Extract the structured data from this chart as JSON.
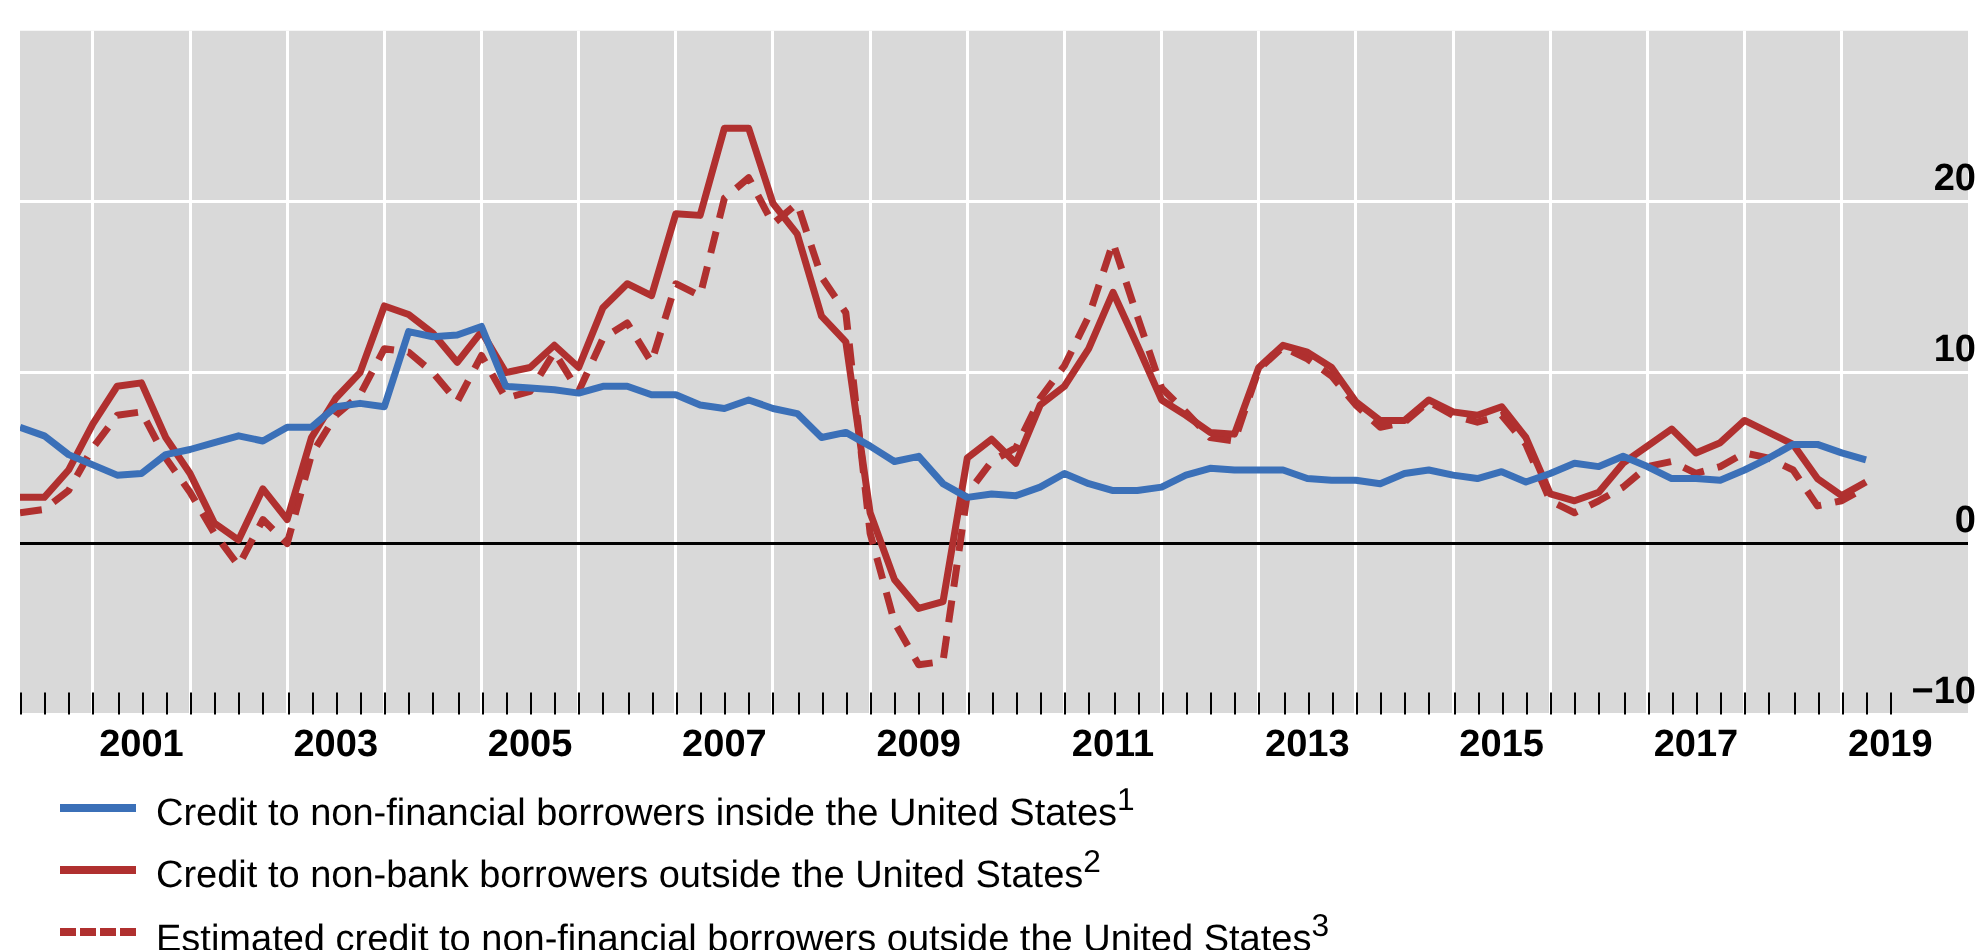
{
  "chart_data": {
    "type": "line",
    "x": [
      2000.25,
      2000.5,
      2000.75,
      2001,
      2001.25,
      2001.5,
      2001.75,
      2002,
      2002.25,
      2002.5,
      2002.75,
      2003,
      2003.25,
      2003.5,
      2003.75,
      2004,
      2004.25,
      2004.5,
      2004.75,
      2005,
      2005.25,
      2005.5,
      2005.75,
      2006,
      2006.25,
      2006.5,
      2006.75,
      2007,
      2007.25,
      2007.5,
      2007.75,
      2008,
      2008.25,
      2008.5,
      2008.75,
      2009,
      2009.25,
      2009.5,
      2009.75,
      2010,
      2010.25,
      2010.5,
      2010.75,
      2011,
      2011.25,
      2011.5,
      2011.75,
      2012,
      2012.25,
      2012.5,
      2012.75,
      2013,
      2013.25,
      2013.5,
      2013.75,
      2014,
      2014.25,
      2014.5,
      2014.75,
      2015,
      2015.25,
      2015.5,
      2015.75,
      2016,
      2016.25,
      2016.5,
      2016.75,
      2017,
      2017.25,
      2017.5,
      2017.75,
      2018,
      2018.25,
      2018.5,
      2018.75,
      2019,
      2019.25
    ],
    "series": [
      {
        "name": "Credit to non-financial borrowers inside the United States$^{1}$",
        "color": "#3b70b8",
        "line_style": "solid",
        "values": [
          6.8,
          6.3,
          5.2,
          4.6,
          4.0,
          4.1,
          5.2,
          5.5,
          5.9,
          6.3,
          6.0,
          6.8,
          6.8,
          8.0,
          8.2,
          8.0,
          12.4,
          12.1,
          12.2,
          12.7,
          9.2,
          9.1,
          9.0,
          8.8,
          9.2,
          9.2,
          8.7,
          8.7,
          8.1,
          7.9,
          8.4,
          7.9,
          7.6,
          6.2,
          6.5,
          5.7,
          4.8,
          5.1,
          3.5,
          2.7,
          2.9,
          2.8,
          3.3,
          4.1,
          3.5,
          3.1,
          3.1,
          3.3,
          4.0,
          4.4,
          4.3,
          4.3,
          4.3,
          3.8,
          3.7,
          3.7,
          3.5,
          4.1,
          4.3,
          4.0,
          3.8,
          4.2,
          3.6,
          4.1,
          4.7,
          4.5,
          5.1,
          4.5,
          3.8,
          3.8,
          3.7,
          4.3,
          5.0,
          5.8,
          5.8,
          5.3,
          4.9
        ]
      },
      {
        "name": "Credit to non-bank borrowers outside the United States$^{2}$",
        "color": "#b0302f",
        "line_style": "solid",
        "values": [
          2.7,
          2.7,
          4.3,
          7.0,
          9.2,
          9.4,
          6.2,
          4.1,
          1.2,
          0.2,
          3.2,
          1.4,
          6.2,
          8.5,
          10.0,
          13.9,
          13.4,
          12.3,
          10.6,
          12.4,
          10.0,
          10.3,
          11.6,
          10.3,
          13.8,
          15.2,
          14.5,
          19.3,
          19.2,
          24.3,
          24.3,
          19.9,
          18.1,
          13.3,
          11.8,
          1.8,
          -2.1,
          -3.8,
          -3.4,
          5.0,
          6.1,
          4.7,
          8.1,
          9.2,
          11.4,
          14.7,
          11.6,
          8.4,
          7.5,
          6.5,
          6.4,
          10.3,
          11.6,
          11.2,
          10.3,
          8.3,
          7.2,
          7.2,
          8.4,
          7.7,
          7.5,
          8.0,
          6.2,
          2.9,
          2.5,
          3.0,
          4.7,
          5.7,
          6.7,
          5.3,
          5.9,
          7.2,
          6.5,
          5.8,
          3.8,
          2.8,
          3.6
        ]
      },
      {
        "name": "Estimated credit to non-financial borrowers outside the United States$^{3}$",
        "color": "#b0302f",
        "line_style": "dashed",
        "values": [
          1.8,
          2.0,
          3.1,
          5.6,
          7.5,
          7.7,
          5.0,
          3.0,
          0.6,
          -1.3,
          1.4,
          0.0,
          5.2,
          7.5,
          8.7,
          11.4,
          11.2,
          10.0,
          8.3,
          11.0,
          8.5,
          8.9,
          11.2,
          8.9,
          12.0,
          12.9,
          10.6,
          15.2,
          14.5,
          20.2,
          21.4,
          18.7,
          19.9,
          15.6,
          13.5,
          0.6,
          -4.6,
          -7.1,
          -6.9,
          2.9,
          4.8,
          5.6,
          8.5,
          10.4,
          13.3,
          17.6,
          13.3,
          9.1,
          7.7,
          6.2,
          6.0,
          10.2,
          11.5,
          10.8,
          9.8,
          8.1,
          6.8,
          7.1,
          8.3,
          7.5,
          7.1,
          7.5,
          5.8,
          2.5,
          1.8,
          2.5,
          3.3,
          4.5,
          4.8,
          4.1,
          4.5,
          5.3,
          5.0,
          4.3,
          2.2,
          2.5,
          3.3
        ]
      }
    ],
    "xlim": [
      2000.25,
      2020.3
    ],
    "xticks": [
      {
        "value": 2000.25,
        "label": null
      },
      {
        "value": 2000.5,
        "label": null
      },
      {
        "value": 2000.75,
        "label": null
      },
      {
        "value": 2001,
        "label": null
      },
      {
        "value": 2001.25,
        "label": null
      },
      {
        "value": 2001.5,
        "label": "2001"
      },
      {
        "value": 2001.75,
        "label": null
      },
      {
        "value": 2002,
        "label": null
      },
      {
        "value": 2002.25,
        "label": null
      },
      {
        "value": 2002.5,
        "label": null
      },
      {
        "value": 2002.75,
        "label": null
      },
      {
        "value": 2003,
        "label": null
      },
      {
        "value": 2003.25,
        "label": null
      },
      {
        "value": 2003.5,
        "label": "2003"
      },
      {
        "value": 2003.75,
        "label": null
      },
      {
        "value": 2004,
        "label": null
      },
      {
        "value": 2004.25,
        "label": null
      },
      {
        "value": 2004.5,
        "label": null
      },
      {
        "value": 2004.75,
        "label": null
      },
      {
        "value": 2005,
        "label": null
      },
      {
        "value": 2005.25,
        "label": null
      },
      {
        "value": 2005.5,
        "label": "2005"
      },
      {
        "value": 2005.75,
        "label": null
      },
      {
        "value": 2006,
        "label": null
      },
      {
        "value": 2006.25,
        "label": null
      },
      {
        "value": 2006.5,
        "label": null
      },
      {
        "value": 2006.75,
        "label": null
      },
      {
        "value": 2007,
        "label": null
      },
      {
        "value": 2007.25,
        "label": null
      },
      {
        "value": 2007.5,
        "label": "2007"
      },
      {
        "value": 2007.75,
        "label": null
      },
      {
        "value": 2008,
        "label": null
      },
      {
        "value": 2008.25,
        "label": null
      },
      {
        "value": 2008.5,
        "label": null
      },
      {
        "value": 2008.75,
        "label": null
      },
      {
        "value": 2009,
        "label": null
      },
      {
        "value": 2009.25,
        "label": null
      },
      {
        "value": 2009.5,
        "label": "2009"
      },
      {
        "value": 2009.75,
        "label": null
      },
      {
        "value": 2010,
        "label": null
      },
      {
        "value": 2010.25,
        "label": null
      },
      {
        "value": 2010.5,
        "label": null
      },
      {
        "value": 2010.75,
        "label": null
      },
      {
        "value": 2011,
        "label": null
      },
      {
        "value": 2011.25,
        "label": null
      },
      {
        "value": 2011.5,
        "label": "2011"
      },
      {
        "value": 2011.75,
        "label": null
      },
      {
        "value": 2012,
        "label": null
      },
      {
        "value": 2012.25,
        "label": null
      },
      {
        "value": 2012.5,
        "label": null
      },
      {
        "value": 2012.75,
        "label": null
      },
      {
        "value": 2013,
        "label": null
      },
      {
        "value": 2013.25,
        "label": null
      },
      {
        "value": 2013.5,
        "label": "2013"
      },
      {
        "value": 2013.75,
        "label": null
      },
      {
        "value": 2014,
        "label": null
      },
      {
        "value": 2014.25,
        "label": null
      },
      {
        "value": 2014.5,
        "label": null
      },
      {
        "value": 2014.75,
        "label": null
      },
      {
        "value": 2015,
        "label": null
      },
      {
        "value": 2015.25,
        "label": null
      },
      {
        "value": 2015.5,
        "label": "2015"
      },
      {
        "value": 2015.75,
        "label": null
      },
      {
        "value": 2016,
        "label": null
      },
      {
        "value": 2016.25,
        "label": null
      },
      {
        "value": 2016.5,
        "label": null
      },
      {
        "value": 2016.75,
        "label": null
      },
      {
        "value": 2017,
        "label": null
      },
      {
        "value": 2017.25,
        "label": null
      },
      {
        "value": 2017.5,
        "label": "2017"
      },
      {
        "value": 2017.75,
        "label": null
      },
      {
        "value": 2018,
        "label": null
      },
      {
        "value": 2018.25,
        "label": null
      },
      {
        "value": 2018.5,
        "label": null
      },
      {
        "value": 2018.75,
        "label": null
      },
      {
        "value": 2019,
        "label": null
      },
      {
        "value": 2019.25,
        "label": null
      },
      {
        "value": 2019.5,
        "label": "2019"
      }
    ],
    "ylim": [
      -10,
      30
    ],
    "yticks": [
      {
        "value": -10,
        "label": "−10"
      },
      0,
      10,
      20
    ],
    "ref_lines": [
      {
        "axis": "y",
        "value": 0,
        "label": null,
        "color": "#000000"
      }
    ],
    "grid": true,
    "legend": "bottom",
    "marker": "none"
  }
}
